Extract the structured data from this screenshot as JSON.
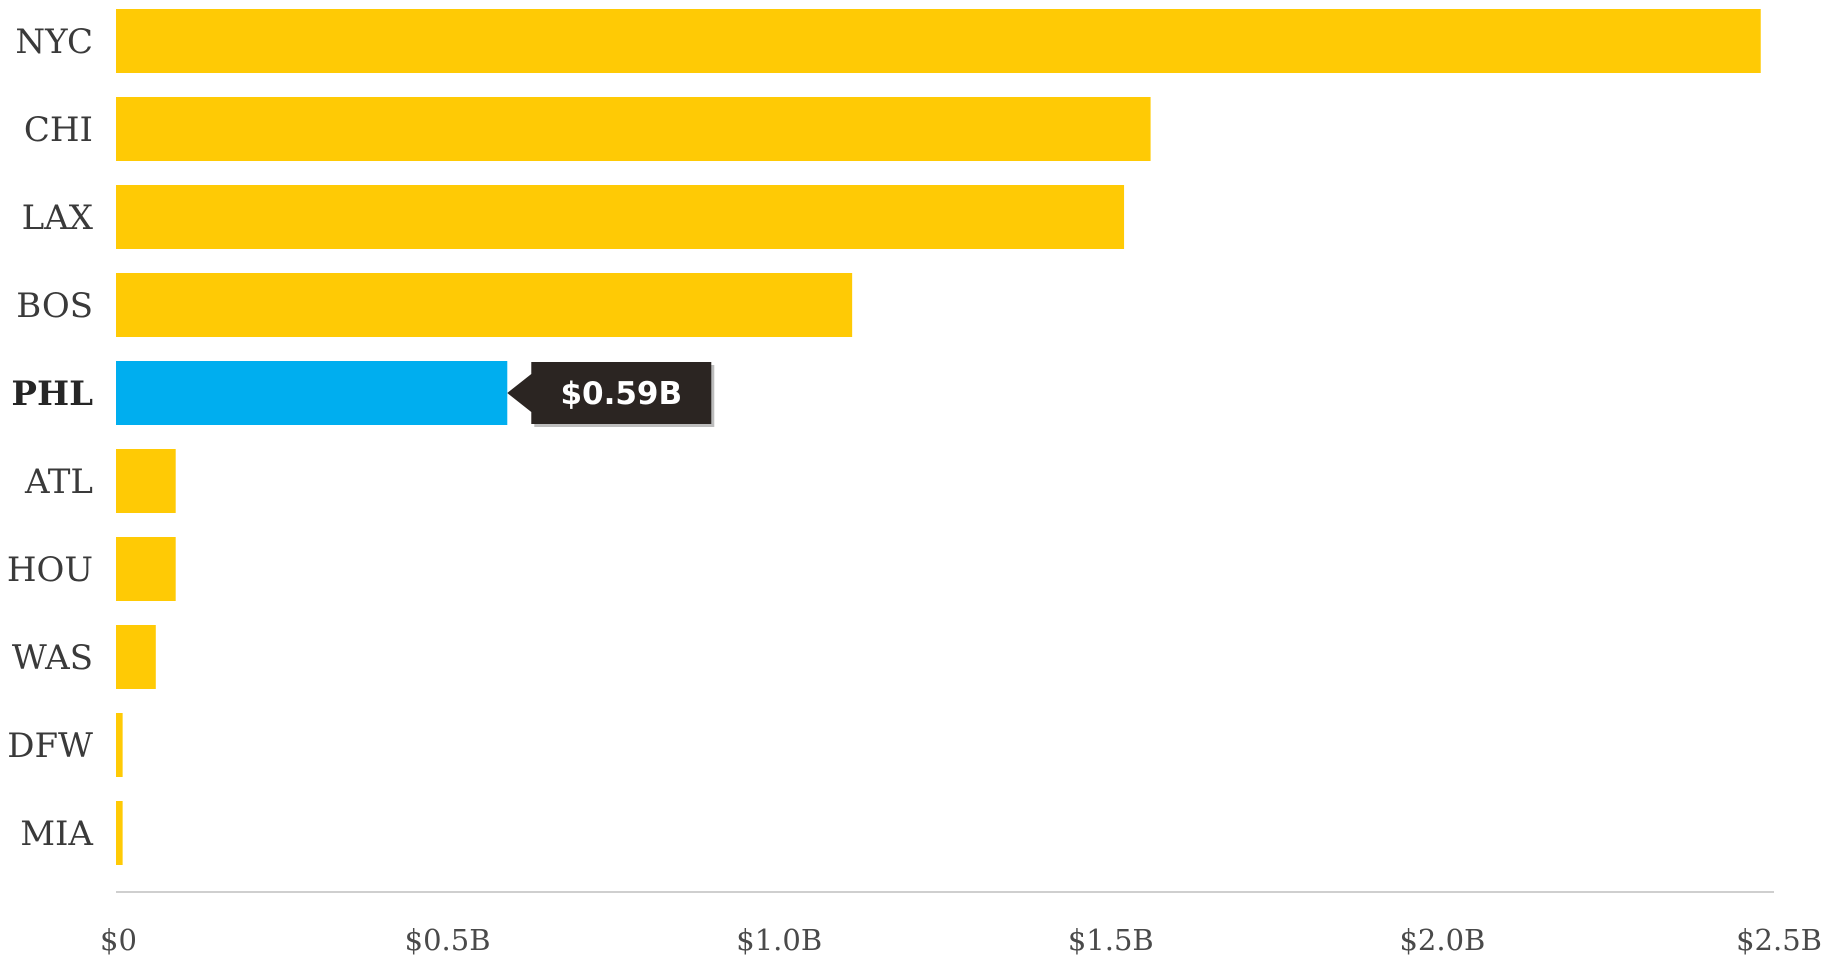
{
  "chart_data": {
    "type": "bar",
    "orientation": "horizontal",
    "categories": [
      "NYC",
      "CHI",
      "LAX",
      "BOS",
      "PHL",
      "ATL",
      "HOU",
      "WAS",
      "DFW",
      "MIA"
    ],
    "values": [
      2.48,
      1.56,
      1.52,
      1.11,
      0.59,
      0.09,
      0.09,
      0.06,
      0.01,
      0.01
    ],
    "unit": "B",
    "highlight": {
      "category": "PHL",
      "label": "$0.59B"
    },
    "x_ticks": [
      0,
      0.5,
      1.0,
      1.5,
      2.0,
      2.5
    ],
    "x_tick_labels": [
      "$0",
      "$0.5B",
      "$1.0B",
      "$1.5B",
      "$2.0B",
      "$2.5B"
    ],
    "xlim": [
      0,
      2.5
    ],
    "grid": false,
    "legend": "none",
    "title": "",
    "xlabel": "",
    "ylabel": ""
  },
  "colors": {
    "bar": "#FFCA05",
    "highlight_bar": "#00AEEF",
    "callout_bg": "#2B2522",
    "callout_text": "#FFFFFF",
    "axis": "#CFCFCF"
  }
}
